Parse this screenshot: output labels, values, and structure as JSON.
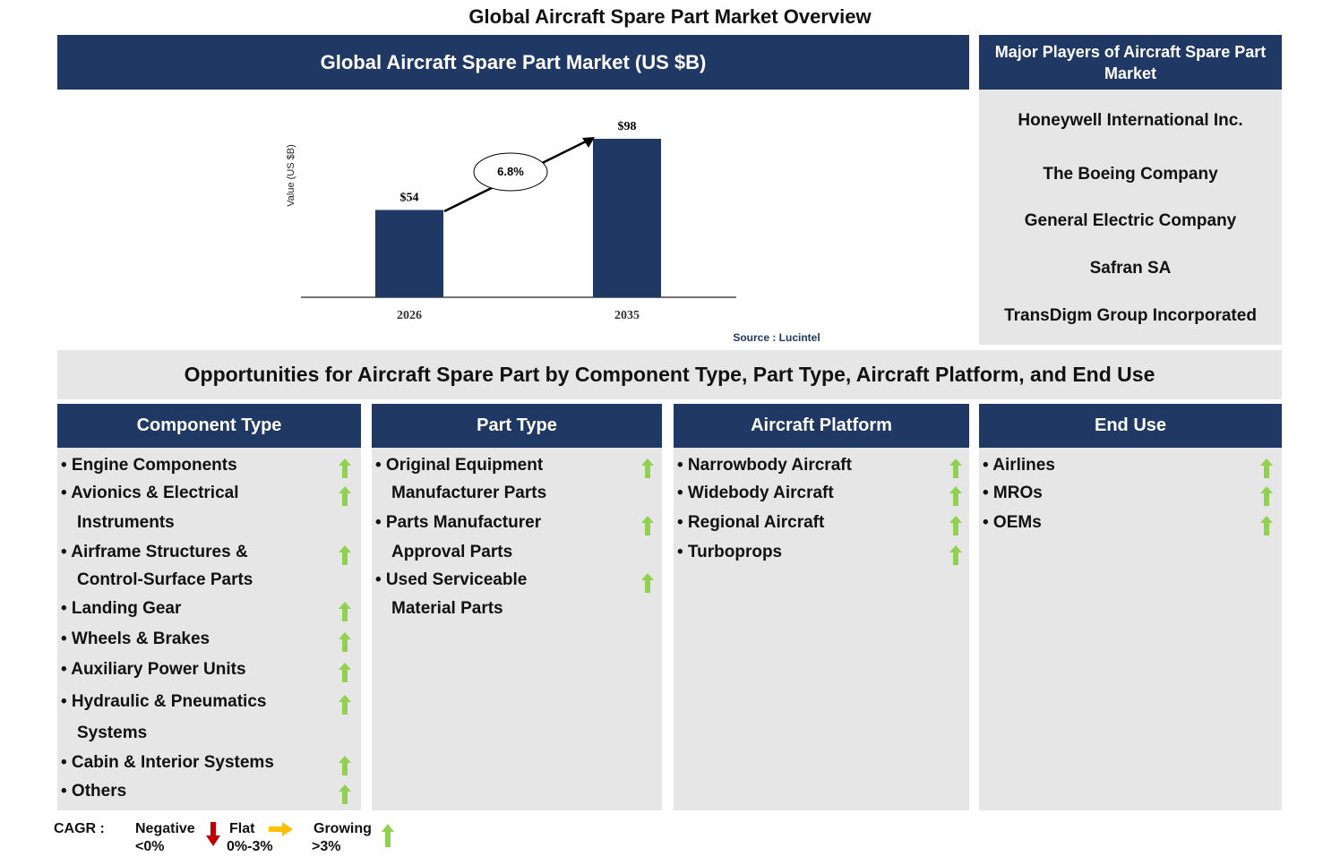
{
  "title": "Global Aircraft Spare Part Market Overview",
  "chart_header": "Global Aircraft Spare Part Market (US $B)",
  "chart_data": {
    "type": "bar",
    "categories": [
      "2026",
      "2035"
    ],
    "values": [
      54,
      98
    ],
    "value_labels": [
      "$54",
      "$98"
    ],
    "ylabel": "Value (US $B)",
    "cagr_label": "6.8%",
    "source": "Source : Lucintel",
    "bar_color": "#1f3864"
  },
  "players": {
    "header": "Major Players of Aircraft Spare Part Market",
    "items": [
      "Honeywell International Inc.",
      "The Boeing Company",
      "General Electric Company",
      "Safran SA",
      "TransDigm Group Incorporated"
    ]
  },
  "opportunities_title": "Opportunities for Aircraft Spare Part by Component Type, Part Type, Aircraft Platform, and End Use",
  "columns": [
    {
      "header": "Component Type",
      "items": [
        [
          "Engine Components"
        ],
        [
          "Avionics & Electrical",
          "Instruments"
        ],
        [
          "Airframe Structures &",
          "Control-Surface Parts"
        ],
        [
          "Landing Gear"
        ],
        [
          "Wheels & Brakes"
        ],
        [
          "Auxiliary Power Units"
        ],
        [
          "Hydraulic & Pneumatics",
          "Systems"
        ],
        [
          "Cabin & Interior Systems"
        ],
        [
          "Others"
        ]
      ]
    },
    {
      "header": "Part Type",
      "items": [
        [
          "Original Equipment",
          "Manufacturer Parts"
        ],
        [
          "Parts Manufacturer",
          "Approval Parts"
        ],
        [
          "Used Serviceable",
          "Material Parts"
        ]
      ]
    },
    {
      "header": "Aircraft Platform",
      "items": [
        [
          "Narrowbody Aircraft"
        ],
        [
          "Widebody Aircraft"
        ],
        [
          "Regional Aircraft"
        ],
        [
          "Turboprops"
        ]
      ]
    },
    {
      "header": "End Use",
      "items": [
        [
          "Airlines"
        ],
        [
          "MROs"
        ],
        [
          "OEMs"
        ]
      ]
    }
  ],
  "legend": {
    "label": "CAGR :",
    "negative": [
      "Negative",
      "<0%"
    ],
    "flat": [
      "Flat",
      "0%-3%"
    ],
    "growing": [
      "Growing",
      ">3%"
    ]
  },
  "colors": {
    "navy": "#1f3864",
    "panel": "#e7e6e6",
    "up": "#92d050",
    "down": "#c00000",
    "flat": "#ffc000"
  }
}
